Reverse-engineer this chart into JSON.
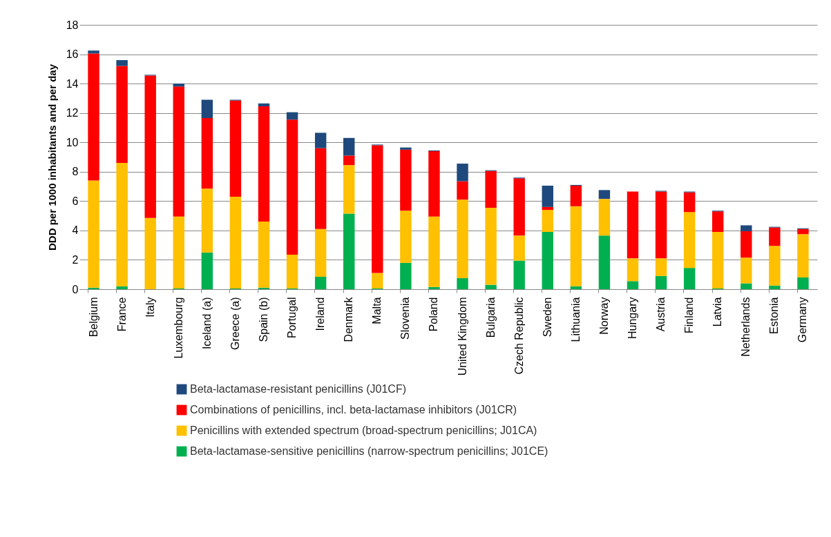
{
  "chart_data": {
    "type": "bar",
    "stacked": true,
    "ylabel": "DDD per 1000 inhabitants and per day",
    "categories": [
      "Belgium",
      "France",
      "Italy",
      "Luxembourg",
      "Iceland (a)",
      "Greece (a)",
      "Spain (b)",
      "Portugal",
      "Ireland",
      "Denmark",
      "Malta",
      "Slovenia",
      "Poland",
      "United Kingdom",
      "Bulgaria",
      "Czech Republic",
      "Sweden",
      "Lithuania",
      "Norway",
      "Hungary",
      "Austria",
      "Finland",
      "Latvia",
      "Netherlands",
      "Estonia",
      "Germany"
    ],
    "series": [
      {
        "name": "Beta-lactamase-sensitive penicillins (narrow-spectrum penicillins; J01CE)",
        "color": "#00b050",
        "values": [
          0.1,
          0.2,
          0,
          0.05,
          2.5,
          0.05,
          0.1,
          0.05,
          0.85,
          5.15,
          0.05,
          1.8,
          0.15,
          0.75,
          0.3,
          1.95,
          3.9,
          0.2,
          3.65,
          0.55,
          0.9,
          1.45,
          0.05,
          0.4,
          0.25,
          0.8
        ]
      },
      {
        "name": "Penicillins with extended spectrum (broad-spectrum penicillins; J01CA)",
        "color": "#ffc000",
        "values": [
          7.3,
          8.4,
          4.85,
          4.9,
          4.35,
          6.25,
          4.5,
          2.3,
          3.25,
          3.3,
          1.05,
          3.55,
          4.8,
          5.35,
          5.25,
          1.7,
          1.5,
          5.45,
          2.5,
          1.55,
          1.2,
          3.8,
          3.85,
          1.75,
          2.7,
          2.95
        ]
      },
      {
        "name": "Combinations of penicillins, incl. beta-lactamase inhibitors (J01CR)",
        "color": "#ff0000",
        "values": [
          8.65,
          6.6,
          9.7,
          8.85,
          4.8,
          6.55,
          7.85,
          9.2,
          5.5,
          0.65,
          8.7,
          4.15,
          4.45,
          1.25,
          2.5,
          3.9,
          0.2,
          1.4,
          0,
          4.55,
          4.55,
          1.35,
          1.4,
          1.8,
          1.25,
          0.35
        ]
      },
      {
        "name": "Beta-lactamase-resistant penicillins (J01CF)",
        "color": "#1f497d",
        "values": [
          0.2,
          0.4,
          0.05,
          0.2,
          1.25,
          0.05,
          0.2,
          0.5,
          1.05,
          1.2,
          0.05,
          0.15,
          0.05,
          1.2,
          0.05,
          0.05,
          1.45,
          0.05,
          0.6,
          0,
          0.05,
          0.05,
          0.05,
          0.4,
          0.05,
          0.05
        ]
      }
    ],
    "ylim": [
      0,
      18
    ],
    "yticks": [
      0,
      2,
      4,
      6,
      8,
      10,
      12,
      14,
      16,
      18
    ],
    "grid": "y",
    "legend": "bottom"
  }
}
